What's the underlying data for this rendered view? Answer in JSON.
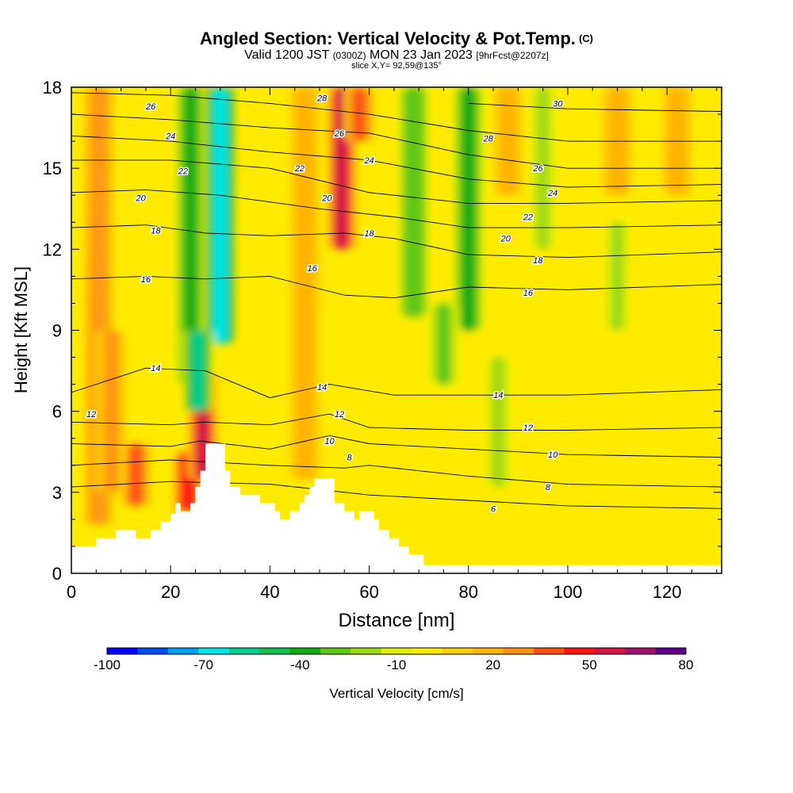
{
  "header": {
    "title": "Angled Section: Vertical Velocity & Pot.Temp.",
    "title_mark": "(C)",
    "valid_prefix": "Valid 1200 JST",
    "valid_zulu": "(0300Z)",
    "valid_date": "MON 23 Jan 2023",
    "forecast": "[9hrFcst@2207z]",
    "slice": "slice X,Y= 92,59@135°"
  },
  "chart_data": {
    "type": "heatmap",
    "xlabel": "Distance [nm]",
    "ylabel": "Height [Kft MSL]",
    "xlim": [
      0,
      131
    ],
    "ylim": [
      0,
      18
    ],
    "x_ticks": [
      "0",
      "20",
      "40",
      "60",
      "80",
      "100",
      "120"
    ],
    "y_ticks": [
      "0",
      "3",
      "6",
      "9",
      "12",
      "15",
      "18"
    ],
    "colorbar": {
      "label": "Vertical Velocity [cm/s]",
      "tick_labels": [
        "-100",
        "-70",
        "-40",
        "-10",
        "20",
        "50",
        "80"
      ],
      "bins": [
        -100,
        -90,
        -80,
        -70,
        -60,
        -50,
        -40,
        -30,
        -20,
        -10,
        0,
        10,
        20,
        30,
        40,
        50,
        60,
        70,
        80
      ],
      "colors": [
        "#0000ff",
        "#0050f0",
        "#00a0f0",
        "#00e6e6",
        "#00d08c",
        "#14c050",
        "#14aa14",
        "#60c814",
        "#a0d814",
        "#e0ee00",
        "#ffeb00",
        "#ffd000",
        "#ffb400",
        "#ff9414",
        "#ff5014",
        "#ff1414",
        "#d21446",
        "#a01470",
        "#60008c"
      ]
    },
    "background_w": 5,
    "updrafts": [
      {
        "x": 5.5,
        "y0": 1.8,
        "y1": 18,
        "w": 35
      },
      {
        "x": 13,
        "y0": 2.5,
        "y1": 4.8,
        "w": 45
      },
      {
        "x": 23.5,
        "y0": 2.3,
        "y1": 4.5,
        "w": 55
      },
      {
        "x": 26.5,
        "y0": 3.5,
        "y1": 7.5,
        "w": 60
      },
      {
        "x": 27,
        "y0": 9,
        "y1": 18,
        "w": 55
      },
      {
        "x": 54.5,
        "y0": 12,
        "y1": 18,
        "w": 60
      },
      {
        "x": 58,
        "y0": 16,
        "y1": 18,
        "w": 45
      },
      {
        "x": 8,
        "y0": 3,
        "y1": 9,
        "w": 30
      },
      {
        "x": 47,
        "y0": 3.5,
        "y1": 18,
        "w": 25
      },
      {
        "x": 88,
        "y0": 14,
        "y1": 18,
        "w": 25
      },
      {
        "x": 110,
        "y0": 14,
        "y1": 18,
        "w": 25
      },
      {
        "x": 122,
        "y0": 14,
        "y1": 18,
        "w": 25
      }
    ],
    "downdrafts": [
      {
        "x": 24,
        "y0": 7,
        "y1": 18,
        "w": -40
      },
      {
        "x": 30,
        "y0": 8.5,
        "y1": 18,
        "w": -70
      },
      {
        "x": 25.5,
        "y0": 6,
        "y1": 9,
        "w": -55
      },
      {
        "x": 69,
        "y0": 9.5,
        "y1": 18,
        "w": -30
      },
      {
        "x": 80,
        "y0": 9,
        "y1": 18,
        "w": -40
      },
      {
        "x": 95,
        "y0": 12,
        "y1": 18,
        "w": -15
      },
      {
        "x": 110,
        "y0": 9,
        "y1": 13,
        "w": -15
      },
      {
        "x": 86,
        "y0": 3.2,
        "y1": 8,
        "w": -15
      },
      {
        "x": 75,
        "y0": 7,
        "y1": 10,
        "w": -25
      }
    ],
    "terrain": [
      [
        0,
        1.0
      ],
      [
        5,
        1.0
      ],
      [
        5,
        1.3
      ],
      [
        9,
        1.3
      ],
      [
        9,
        1.6
      ],
      [
        13,
        1.6
      ],
      [
        13,
        1.3
      ],
      [
        16,
        1.3
      ],
      [
        16,
        1.6
      ],
      [
        18,
        1.6
      ],
      [
        18,
        1.9
      ],
      [
        20,
        1.9
      ],
      [
        20,
        2.2
      ],
      [
        21,
        2.2
      ],
      [
        21,
        2.6
      ],
      [
        22,
        2.6
      ],
      [
        22,
        2.3
      ],
      [
        24,
        2.3
      ],
      [
        24,
        2.6
      ],
      [
        25,
        2.6
      ],
      [
        25,
        3.2
      ],
      [
        26,
        3.2
      ],
      [
        26,
        3.8
      ],
      [
        27,
        3.8
      ],
      [
        27,
        4.8
      ],
      [
        31,
        4.8
      ],
      [
        31,
        3.8
      ],
      [
        32,
        3.8
      ],
      [
        32,
        3.2
      ],
      [
        34,
        3.2
      ],
      [
        34,
        2.9
      ],
      [
        38,
        2.9
      ],
      [
        38,
        2.6
      ],
      [
        41,
        2.6
      ],
      [
        41,
        2.3
      ],
      [
        42,
        2.3
      ],
      [
        42,
        2.0
      ],
      [
        44,
        2.0
      ],
      [
        44,
        2.3
      ],
      [
        46,
        2.3
      ],
      [
        46,
        2.6
      ],
      [
        47,
        2.6
      ],
      [
        47,
        2.9
      ],
      [
        48,
        2.9
      ],
      [
        48,
        3.2
      ],
      [
        49,
        3.2
      ],
      [
        49,
        3.5
      ],
      [
        53,
        3.5
      ],
      [
        53,
        2.6
      ],
      [
        55,
        2.6
      ],
      [
        55,
        2.3
      ],
      [
        57,
        2.3
      ],
      [
        57,
        2.0
      ],
      [
        58,
        2.0
      ],
      [
        58,
        2.3
      ],
      [
        61,
        2.3
      ],
      [
        61,
        2.0
      ],
      [
        62,
        2.0
      ],
      [
        62,
        1.6
      ],
      [
        64,
        1.6
      ],
      [
        64,
        1.3
      ],
      [
        66,
        1.3
      ],
      [
        66,
        1.0
      ],
      [
        68,
        1.0
      ],
      [
        68,
        0.7
      ],
      [
        71,
        0.7
      ],
      [
        71,
        0.3
      ],
      [
        131,
        0.3
      ],
      [
        131,
        0
      ],
      [
        0,
        0
      ]
    ],
    "isentropes": [
      {
        "label": "6",
        "pts": [
          [
            0,
            3.2
          ],
          [
            20,
            3.4
          ],
          [
            40,
            3.3
          ],
          [
            60,
            2.9
          ],
          [
            80,
            2.7
          ],
          [
            100,
            2.5
          ],
          [
            131,
            2.4
          ]
        ]
      },
      {
        "label": "8",
        "pts": [
          [
            0,
            4.0
          ],
          [
            20,
            4.2
          ],
          [
            40,
            4.0
          ],
          [
            55,
            3.9
          ],
          [
            60,
            4.0
          ],
          [
            80,
            3.6
          ],
          [
            100,
            3.3
          ],
          [
            131,
            3.2
          ]
        ]
      },
      {
        "label": "10",
        "pts": [
          [
            0,
            4.8
          ],
          [
            20,
            4.7
          ],
          [
            26,
            4.9
          ],
          [
            40,
            4.6
          ],
          [
            52,
            5.1
          ],
          [
            60,
            4.8
          ],
          [
            80,
            4.6
          ],
          [
            100,
            4.4
          ],
          [
            131,
            4.3
          ]
        ]
      },
      {
        "label": "12",
        "pts": [
          [
            0,
            5.6
          ],
          [
            20,
            5.5
          ],
          [
            27,
            5.6
          ],
          [
            40,
            5.5
          ],
          [
            52,
            5.9
          ],
          [
            60,
            5.4
          ],
          [
            80,
            5.3
          ],
          [
            100,
            5.3
          ],
          [
            131,
            5.4
          ]
        ]
      },
      {
        "label": "14",
        "pts": [
          [
            0,
            6.7
          ],
          [
            15,
            7.6
          ],
          [
            27,
            7.5
          ],
          [
            40,
            6.5
          ],
          [
            52,
            7.0
          ],
          [
            65,
            6.6
          ],
          [
            80,
            6.6
          ],
          [
            100,
            6.6
          ],
          [
            131,
            6.8
          ]
        ]
      },
      {
        "label": "16",
        "pts": [
          [
            0,
            10.9
          ],
          [
            15,
            11.0
          ],
          [
            27,
            10.9
          ],
          [
            40,
            11.0
          ],
          [
            55,
            10.3
          ],
          [
            65,
            10.2
          ],
          [
            80,
            10.6
          ],
          [
            100,
            10.5
          ],
          [
            131,
            10.7
          ]
        ]
      },
      {
        "label": "18",
        "pts": [
          [
            0,
            12.8
          ],
          [
            15,
            12.9
          ],
          [
            27,
            12.6
          ],
          [
            40,
            12.5
          ],
          [
            55,
            12.6
          ],
          [
            65,
            12.4
          ],
          [
            80,
            11.8
          ],
          [
            100,
            11.7
          ],
          [
            131,
            11.9
          ]
        ]
      },
      {
        "label": "20",
        "pts": [
          [
            0,
            14.1
          ],
          [
            15,
            14.2
          ],
          [
            30,
            14.0
          ],
          [
            50,
            13.5
          ],
          [
            65,
            13.2
          ],
          [
            80,
            12.8
          ],
          [
            100,
            12.8
          ],
          [
            131,
            12.9
          ]
        ]
      },
      {
        "label": "22",
        "pts": [
          [
            0,
            15.3
          ],
          [
            20,
            15.3
          ],
          [
            40,
            15.0
          ],
          [
            60,
            14.1
          ],
          [
            80,
            13.7
          ],
          [
            100,
            13.7
          ],
          [
            131,
            13.8
          ]
        ]
      },
      {
        "label": "24",
        "pts": [
          [
            0,
            16.2
          ],
          [
            20,
            16.0
          ],
          [
            40,
            15.6
          ],
          [
            60,
            15.3
          ],
          [
            80,
            14.6
          ],
          [
            100,
            14.3
          ],
          [
            131,
            14.4
          ]
        ]
      },
      {
        "label": "26",
        "pts": [
          [
            0,
            17.0
          ],
          [
            20,
            16.8
          ],
          [
            40,
            16.5
          ],
          [
            60,
            16.3
          ],
          [
            80,
            15.5
          ],
          [
            100,
            15.0
          ],
          [
            131,
            15.0
          ]
        ]
      },
      {
        "label": "28",
        "pts": [
          [
            0,
            17.8
          ],
          [
            20,
            17.7
          ],
          [
            40,
            17.4
          ],
          [
            60,
            17.0
          ],
          [
            80,
            16.4
          ],
          [
            100,
            16.0
          ],
          [
            131,
            16.0
          ]
        ]
      },
      {
        "label": "30",
        "pts": [
          [
            80,
            17.4
          ],
          [
            100,
            17.2
          ],
          [
            131,
            17.1
          ]
        ]
      }
    ],
    "contour_labels": [
      {
        "text": "26",
        "x": 16,
        "y": 17.3
      },
      {
        "text": "24",
        "x": 20,
        "y": 16.2
      },
      {
        "text": "22",
        "x": 22.5,
        "y": 14.9
      },
      {
        "text": "20",
        "x": 14,
        "y": 13.9
      },
      {
        "text": "18",
        "x": 17,
        "y": 12.7
      },
      {
        "text": "16",
        "x": 15,
        "y": 10.9
      },
      {
        "text": "14",
        "x": 17,
        "y": 7.6
      },
      {
        "text": "12",
        "x": 4,
        "y": 5.9
      },
      {
        "text": "28",
        "x": 50.5,
        "y": 17.6
      },
      {
        "text": "26",
        "x": 54,
        "y": 16.3
      },
      {
        "text": "24",
        "x": 60,
        "y": 15.3
      },
      {
        "text": "22",
        "x": 46,
        "y": 15.0
      },
      {
        "text": "20",
        "x": 51.5,
        "y": 13.9
      },
      {
        "text": "18",
        "x": 60,
        "y": 12.6
      },
      {
        "text": "16",
        "x": 48.5,
        "y": 11.3
      },
      {
        "text": "14",
        "x": 50.5,
        "y": 6.9
      },
      {
        "text": "12",
        "x": 54,
        "y": 5.9
      },
      {
        "text": "10",
        "x": 52,
        "y": 4.9
      },
      {
        "text": "8",
        "x": 56,
        "y": 4.3
      },
      {
        "text": "30",
        "x": 98,
        "y": 17.4
      },
      {
        "text": "28",
        "x": 84,
        "y": 16.1
      },
      {
        "text": "26",
        "x": 94,
        "y": 15.0
      },
      {
        "text": "24",
        "x": 97,
        "y": 14.1
      },
      {
        "text": "22",
        "x": 92,
        "y": 13.2
      },
      {
        "text": "20",
        "x": 87.5,
        "y": 12.4
      },
      {
        "text": "18",
        "x": 94,
        "y": 11.6
      },
      {
        "text": "16",
        "x": 92,
        "y": 10.4
      },
      {
        "text": "14",
        "x": 86,
        "y": 6.6
      },
      {
        "text": "12",
        "x": 92,
        "y": 5.4
      },
      {
        "text": "10",
        "x": 97,
        "y": 4.4
      },
      {
        "text": "8",
        "x": 96,
        "y": 3.2
      },
      {
        "text": "6",
        "x": 85,
        "y": 2.4
      }
    ]
  }
}
